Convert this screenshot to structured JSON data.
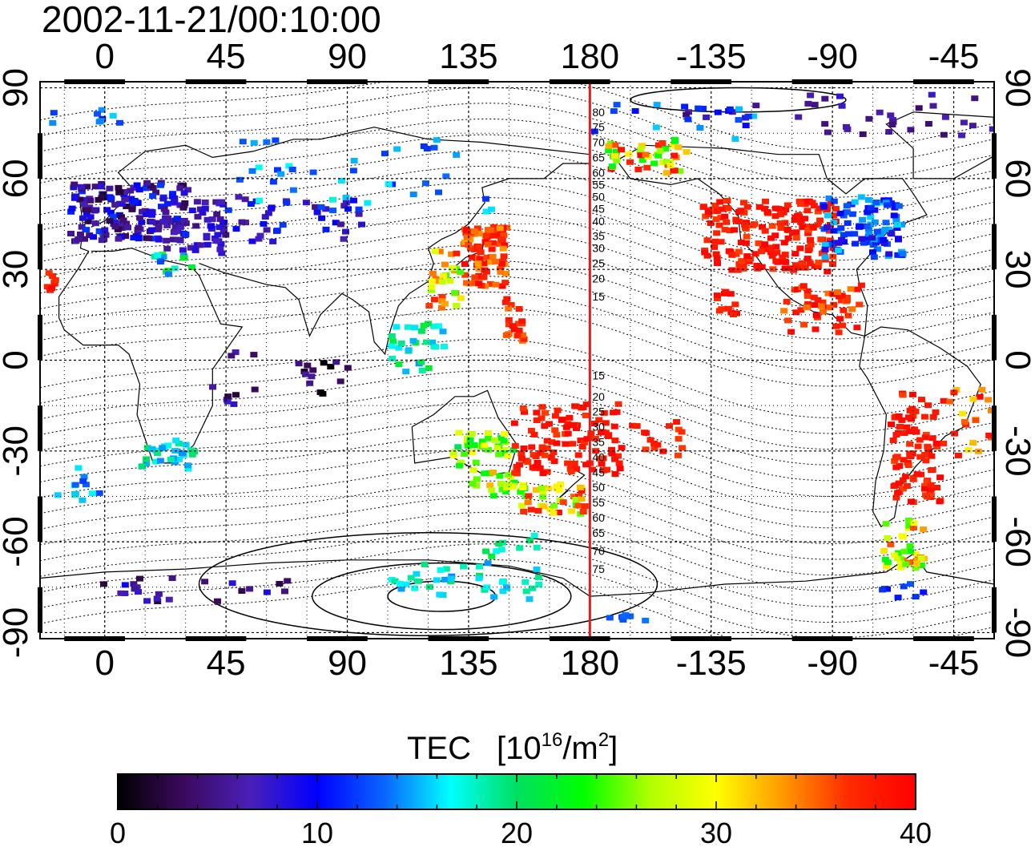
{
  "title": "2002-11-21/00:10:00",
  "map": {
    "lon_ticks": [
      "0",
      "45",
      "90",
      "135",
      "180",
      "-135",
      "-90",
      "-45"
    ],
    "lat_ticks": [
      "90",
      "60",
      "30",
      "0",
      "-30",
      "-60",
      "-90"
    ],
    "lon_range": [
      -24,
      330
    ],
    "lat_range": [
      -92,
      92
    ],
    "grid": true,
    "highlight_meridian": 180,
    "highlight_color": "#e41a1c",
    "contour_labels_north": [
      "80",
      "75",
      "70",
      "65",
      "60",
      "55",
      "50",
      "45",
      "40",
      "35",
      "30",
      "25",
      "20",
      "15"
    ],
    "contour_labels_south": [
      "15",
      "20",
      "25",
      "30",
      "35",
      "40",
      "45",
      "50",
      "55",
      "60",
      "65",
      "70",
      "75"
    ]
  },
  "colorbar": {
    "label_main": "TEC",
    "label_unit_open": "[10",
    "label_unit_exp": "16",
    "label_unit_mid": "/m",
    "label_unit_exp2": "2",
    "label_unit_close": "]",
    "tick_labels": [
      "0",
      "10",
      "20",
      "30",
      "40"
    ],
    "range": [
      0,
      40
    ],
    "palette": [
      "#000000",
      "#3b0a5e",
      "#4a1fb8",
      "#0000ff",
      "#0a64ff",
      "#00ffff",
      "#00e060",
      "#00ff00",
      "#b0ff00",
      "#ffff00",
      "#ff9900",
      "#ff2a00",
      "#ff0000"
    ]
  }
}
